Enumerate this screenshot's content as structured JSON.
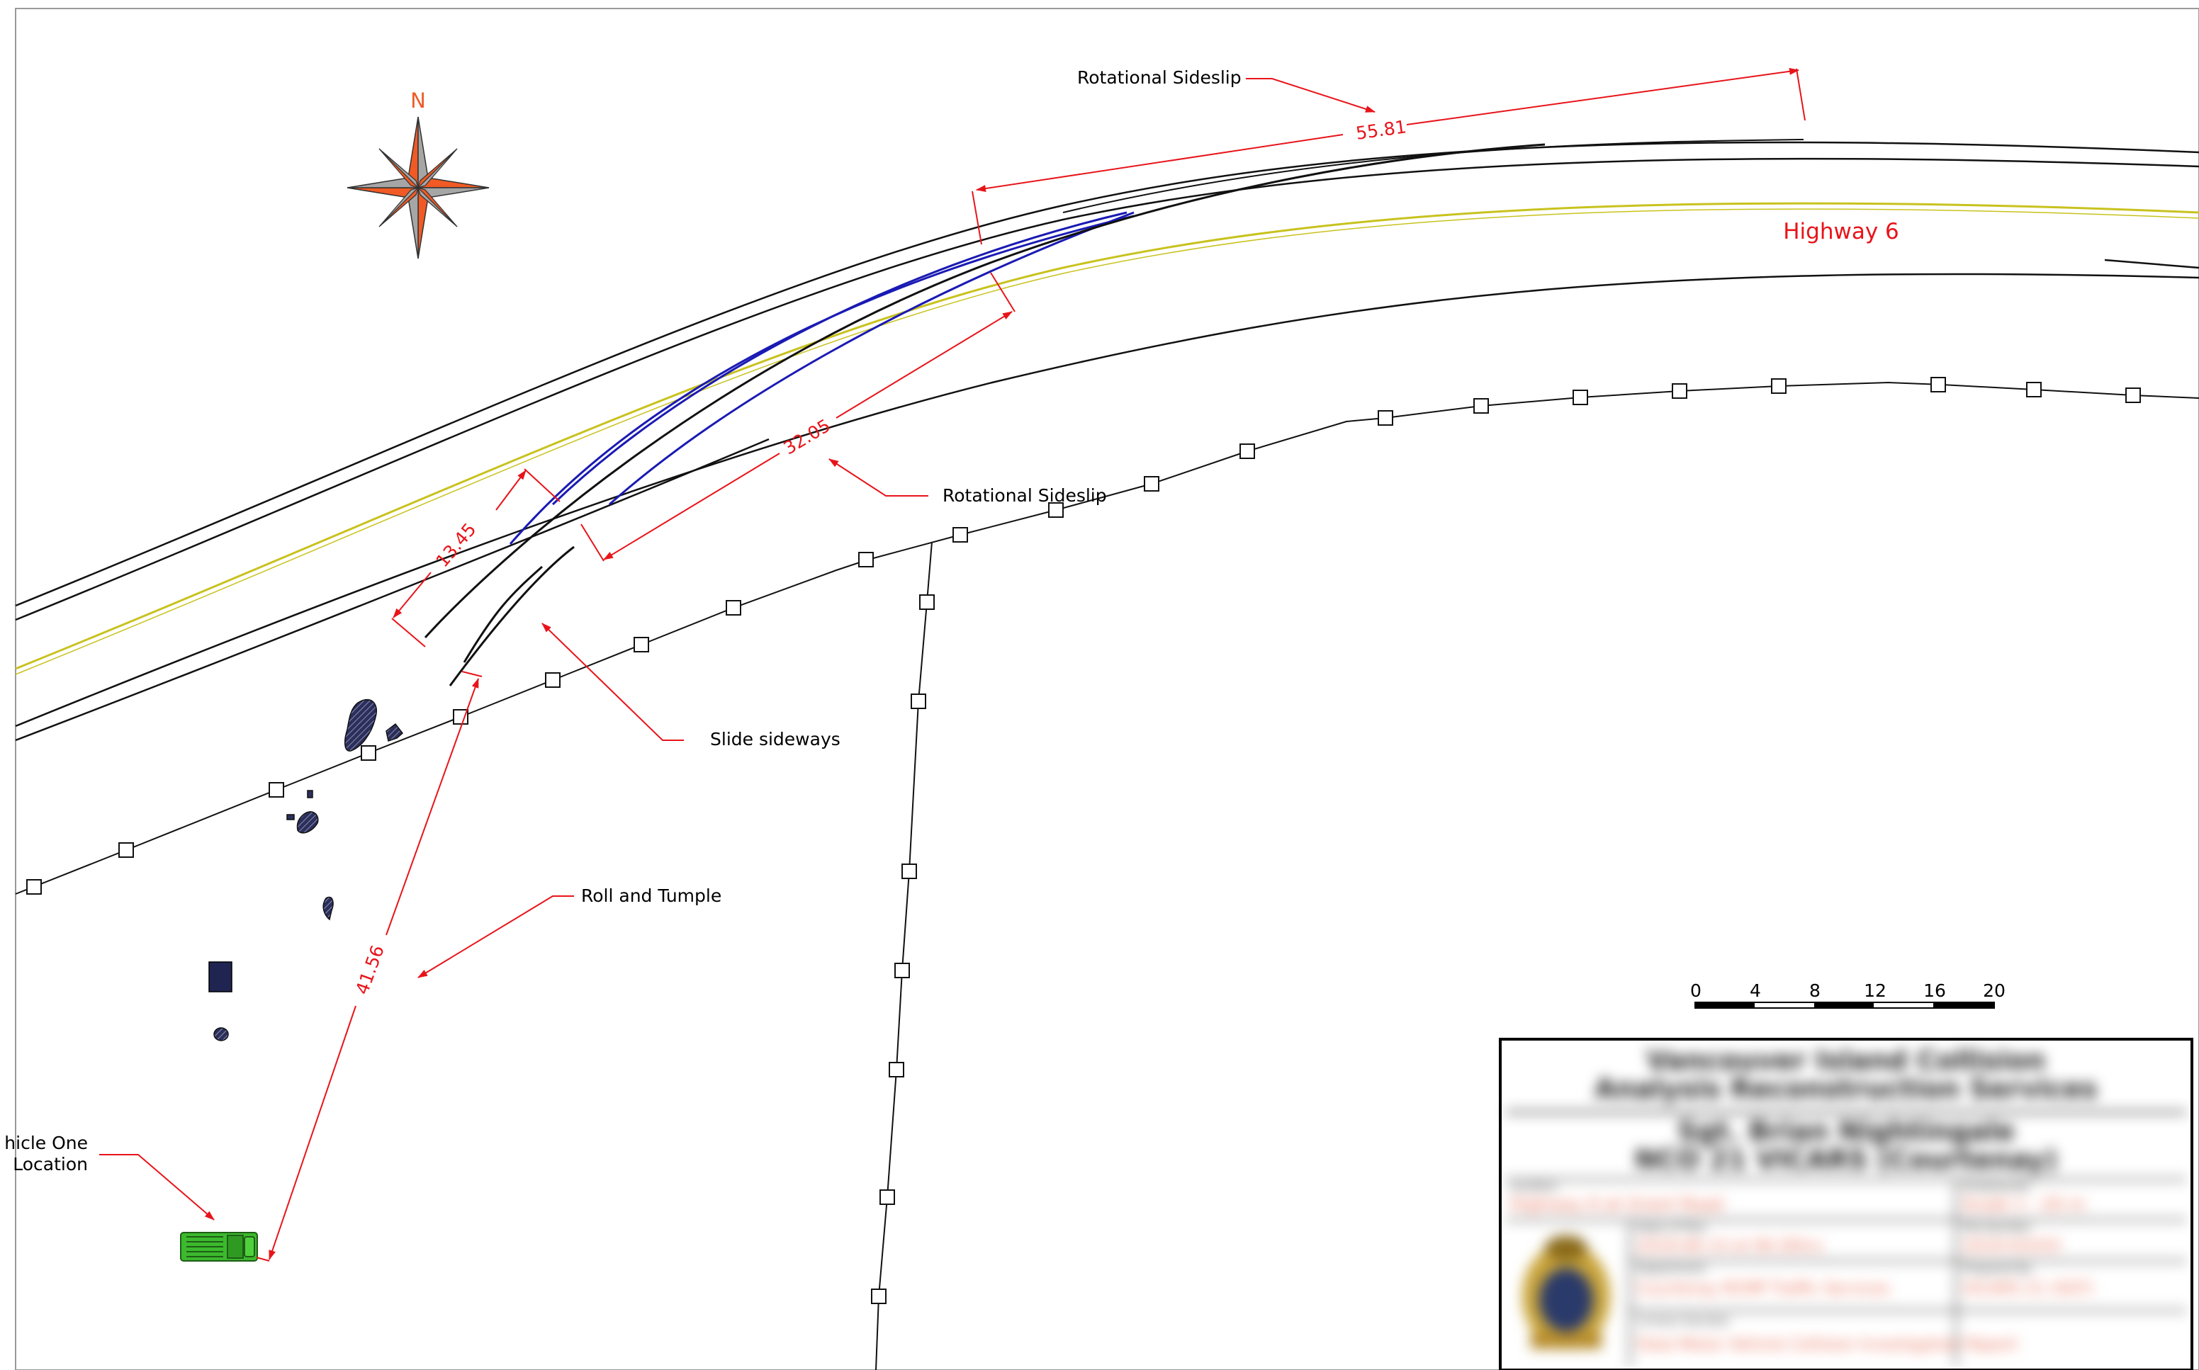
{
  "compass": {
    "north_label": "N"
  },
  "road": {
    "name": "Highway 6"
  },
  "annotations": {
    "rotational_sideslip_top": "Rotational Sideslip",
    "rotational_sideslip_mid": "Rotational Sideslip",
    "slide_sideways": "Slide sideways",
    "roll_and_tumple": "Roll and Tumple",
    "vehicle_one_line1": "hicle One",
    "vehicle_one_line2": "Location"
  },
  "dimensions": {
    "d1": "55.81",
    "d2": "32.05",
    "d3": "13.45",
    "d4": "41.56"
  },
  "scale_bar": {
    "ticks": [
      "0",
      "4",
      "8",
      "12",
      "16",
      "20"
    ]
  },
  "title_block": {
    "title_line1": "Vancouver Island Collision",
    "title_line2": "Analysis Reconstruction Services",
    "officer_line1": "Sgt. Brian Nightingale",
    "officer_line2": "NCO 21 VICARS (Courtenay)",
    "location_label": "Location",
    "location_value": "Highway 6 at Grant Road",
    "drawn_label": "Drawing No.",
    "drawn_value": "Scale 1 : 20 m",
    "date_label": "Date of Plan",
    "date_value": "2019-06-14 at 06:30hrs",
    "file_label": "File Number",
    "file_value": "2019-XXXXX",
    "dept_label": "Department",
    "dept_value": "Courtenay RCMP Traffic Services",
    "prepared_label": "Prepared By",
    "prepared_value": "VICARS 21 (SGT)",
    "contact_label": "Contact Number",
    "contact_value": "Fatal Motor Vehicle Collision Investigation Report"
  },
  "colors": {
    "dimension_red": "#e8141a",
    "centerline_yellow": "#c8c21e",
    "tire_mark_blue": "#1a1ab4",
    "compass_orange": "#f15a24",
    "compass_grey": "#a6a6a6",
    "vehicle_green": "#3cb92d",
    "debris_navy": "#2b2f5a"
  },
  "icons": {
    "compass": "compass-rose-icon",
    "vehicle": "pickup-truck-icon",
    "crest": "rcmp-crest-icon"
  }
}
